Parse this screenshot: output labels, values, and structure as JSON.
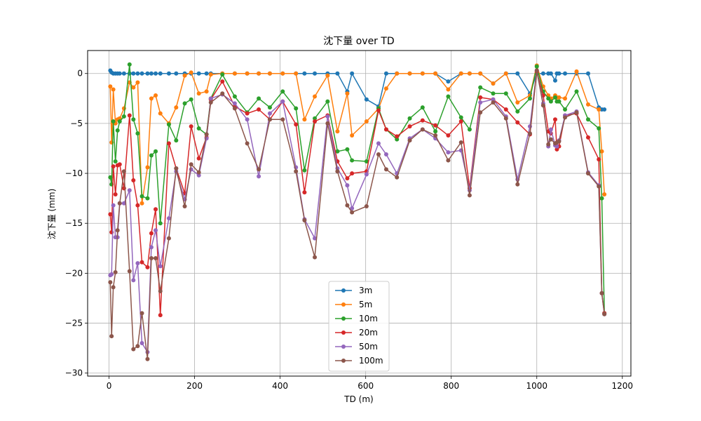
{
  "chart_data": {
    "type": "line",
    "title": "沈下量 over TD",
    "xlabel": "TD (m)",
    "ylabel": "沈下量 (mm)",
    "xlim": [
      -50,
      1220
    ],
    "ylim": [
      -30.3,
      2.3
    ],
    "xticks": [
      0,
      200,
      400,
      600,
      800,
      1000,
      1200
    ],
    "yticks": [
      0,
      -5,
      -10,
      -15,
      -20,
      -25,
      -30
    ],
    "grid": true,
    "legend": "lower-center",
    "x": [
      3,
      6,
      10,
      15,
      20,
      25,
      35,
      48,
      57,
      67,
      77,
      90,
      99,
      109,
      120,
      140,
      157,
      177,
      192,
      210,
      228,
      238,
      265,
      294,
      323,
      350,
      376,
      406,
      437,
      457,
      481,
      511,
      534,
      557,
      568,
      602,
      630,
      648,
      673,
      703,
      733,
      763,
      793,
      823,
      843,
      868,
      898,
      928,
      955,
      984,
      1000,
      1015,
      1027,
      1033,
      1043,
      1047,
      1052,
      1066,
      1093,
      1120,
      1145,
      1152,
      1158
    ],
    "series": [
      {
        "name": "3m",
        "color": "#1f77b4",
        "values": [
          0.3,
          0.1,
          0.0,
          0.0,
          0.0,
          0.0,
          0.0,
          0.0,
          0.0,
          0.0,
          0.0,
          0.0,
          0.0,
          0.0,
          0.0,
          0.0,
          0.0,
          0.0,
          0.0,
          0.0,
          0.0,
          0.0,
          0.0,
          0.0,
          0.0,
          0.0,
          0.0,
          0.0,
          0.0,
          0.0,
          0.0,
          0.0,
          0.0,
          -1.8,
          0.0,
          -2.6,
          -3.3,
          0.0,
          0.0,
          0.0,
          0.0,
          0.0,
          -0.8,
          0.0,
          0.0,
          0.0,
          -1.0,
          0.0,
          0.0,
          -2.0,
          0.0,
          0.0,
          0.0,
          0.0,
          -0.7,
          0.0,
          0.0,
          0.0,
          0.0,
          0.0,
          -3.4,
          -3.6,
          -3.6
        ]
      },
      {
        "name": "5m",
        "color": "#ff7f0e",
        "values": [
          -1.3,
          -6.9,
          -1.6,
          -5.0,
          -4.6,
          -4.5,
          -3.5,
          -0.9,
          -1.4,
          -0.9,
          -13.0,
          -9.4,
          -2.5,
          -2.2,
          -4.0,
          -5.0,
          -3.4,
          -0.2,
          0.1,
          -2.0,
          -1.8,
          -0.1,
          0.0,
          0.0,
          0.0,
          0.0,
          0.0,
          0.0,
          0.0,
          -4.6,
          -2.3,
          -0.2,
          -5.8,
          -2.0,
          -6.2,
          -4.8,
          -3.5,
          -1.5,
          0.0,
          0.0,
          0.0,
          0.0,
          -1.6,
          0.0,
          0.0,
          0.0,
          -1.0,
          0.0,
          -2.9,
          -2.2,
          0.8,
          -1.3,
          -2.2,
          -2.5,
          -2.2,
          -2.4,
          -2.4,
          -2.5,
          0.2,
          -3.1,
          -3.6,
          -7.8,
          -12.1
        ]
      },
      {
        "name": "10m",
        "color": "#2ca02c",
        "values": [
          -10.4,
          -11.1,
          -4.8,
          -8.8,
          -5.7,
          -4.8,
          -4.3,
          0.9,
          -4.6,
          -6.0,
          -12.3,
          -12.5,
          -8.2,
          -7.8,
          -15.0,
          -5.1,
          -6.7,
          -3.0,
          -2.6,
          -5.5,
          -6.1,
          -2.5,
          -0.1,
          -2.3,
          -3.9,
          -2.5,
          -3.4,
          -1.8,
          -3.5,
          -9.7,
          -4.5,
          -2.8,
          -7.8,
          -7.6,
          -8.7,
          -8.8,
          -3.5,
          -5.6,
          -6.6,
          -4.5,
          -3.4,
          -5.8,
          -2.3,
          -4.4,
          -5.6,
          -1.4,
          -2.0,
          -2.0,
          -3.8,
          -2.5,
          0.7,
          -1.8,
          -2.5,
          -2.8,
          -2.4,
          -2.8,
          -2.8,
          -3.6,
          -1.8,
          -4.6,
          -5.5,
          -12.5,
          -24.0
        ]
      },
      {
        "name": "20m",
        "color": "#d62728",
        "values": [
          -14.1,
          -15.9,
          -9.3,
          -12.1,
          -9.2,
          -9.1,
          -11.5,
          -4.2,
          -10.7,
          -13.2,
          -18.9,
          -19.4,
          -16.0,
          -13.6,
          -24.2,
          -7.0,
          -9.5,
          -12.0,
          -5.3,
          -8.5,
          -6.4,
          -2.6,
          -0.8,
          -3.3,
          -4.0,
          -3.6,
          -4.6,
          -2.8,
          -5.1,
          -11.9,
          -4.8,
          -4.2,
          -8.8,
          -10.5,
          -10.0,
          -9.8,
          -3.7,
          -5.6,
          -6.3,
          -5.3,
          -4.7,
          -5.2,
          -6.2,
          -4.8,
          -11.5,
          -2.4,
          -2.6,
          -3.6,
          -4.9,
          -6.1,
          0.2,
          -2.2,
          -5.8,
          -6.0,
          -4.6,
          -7.6,
          -7.3,
          -4.2,
          -4.0,
          -6.4,
          -8.6,
          -22.0,
          -24.0
        ]
      },
      {
        "name": "50m",
        "color": "#9467bd",
        "values": [
          -20.2,
          -20.1,
          -13.2,
          -16.4,
          -16.4,
          -13.0,
          -13.0,
          -11.7,
          -20.7,
          -19.0,
          -27.0,
          -27.9,
          -17.4,
          -15.7,
          -19.3,
          -14.5,
          -9.8,
          -12.6,
          -9.6,
          -10.2,
          -6.5,
          -2.5,
          -2.1,
          -3.0,
          -4.6,
          -10.3,
          -4.0,
          -2.8,
          -9.4,
          -14.6,
          -16.5,
          -4.3,
          -9.5,
          -11.2,
          -13.5,
          -10.1,
          -7.0,
          -8.1,
          -10.0,
          -6.5,
          -5.6,
          -6.5,
          -7.9,
          -7.7,
          -11.7,
          -2.9,
          -2.6,
          -4.3,
          -10.6,
          -5.3,
          0.3,
          -3.0,
          -7.3,
          -5.6,
          -7.2,
          -7.3,
          -6.7,
          -4.2,
          -3.8,
          -9.9,
          -11.2,
          -22.0,
          -24.1
        ]
      },
      {
        "name": "100m",
        "color": "#8c564b",
        "values": [
          -20.9,
          -26.3,
          -21.4,
          -19.9,
          -15.7,
          -13.0,
          -9.8,
          -19.8,
          -27.6,
          -27.3,
          -24.0,
          -28.6,
          -18.5,
          -18.5,
          -21.8,
          -16.5,
          -9.5,
          -13.3,
          -9.1,
          -9.9,
          -6.1,
          -2.9,
          -2.0,
          -3.5,
          -7.0,
          -9.6,
          -4.6,
          -4.6,
          -9.8,
          -14.7,
          -18.4,
          -5.0,
          -9.8,
          -13.2,
          -13.9,
          -13.3,
          -8.1,
          -9.6,
          -10.4,
          -6.7,
          -5.6,
          -6.2,
          -8.7,
          -6.9,
          -12.2,
          -3.9,
          -2.9,
          -4.5,
          -11.1,
          -6.0,
          0.3,
          -3.2,
          -7.1,
          -6.6,
          -7.0,
          -6.9,
          -6.8,
          -4.4,
          -3.9,
          -10.0,
          -11.3,
          -22.0,
          -24.1
        ]
      }
    ]
  }
}
